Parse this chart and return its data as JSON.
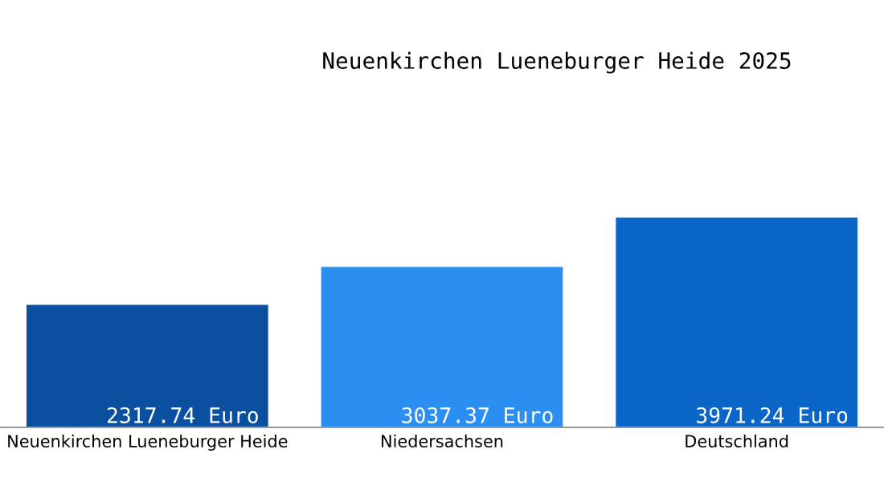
{
  "chart_data": {
    "type": "bar",
    "title": "Neuenkirchen Lueneburger Heide 2025",
    "categories": [
      "Neuenkirchen Lueneburger Heide",
      "Niedersachsen",
      "Deutschland"
    ],
    "values": [
      2317.74,
      3037.37,
      3971.24
    ],
    "colors": [
      "#0b4fa0",
      "#2a8ff0",
      "#0b66c8"
    ],
    "value_labels": [
      "2317.74 Euro",
      "3037.37 Euro",
      "3971.24 Euro"
    ],
    "grid": false,
    "legend": false
  }
}
